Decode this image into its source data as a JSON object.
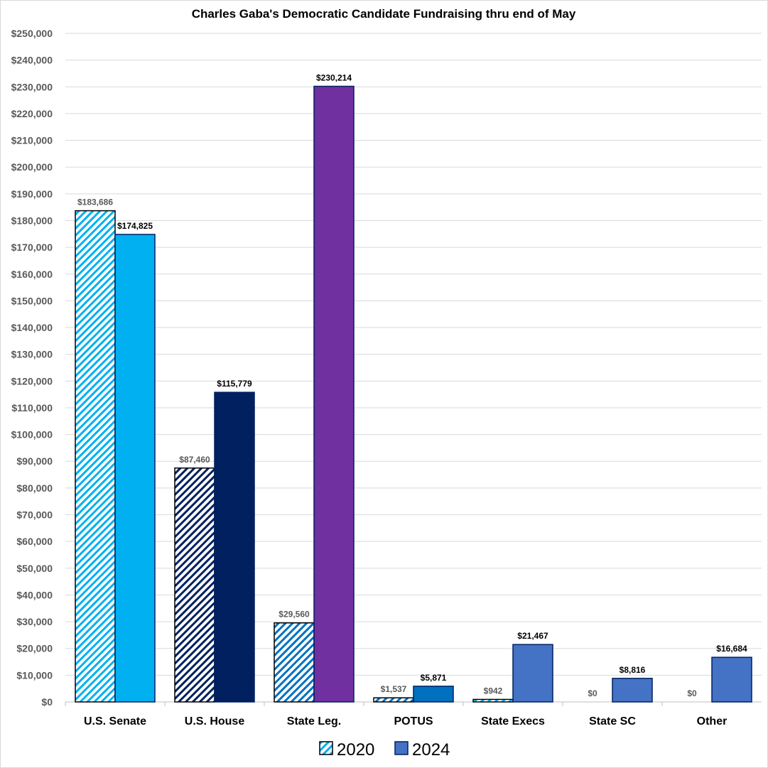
{
  "chart_data": {
    "type": "bar",
    "title": "Charles Gaba's Democratic Candidate Fundraising thru end of May",
    "xlabel": "",
    "ylabel": "",
    "ylim": [
      0,
      250000
    ],
    "ytick_step": 10000,
    "grid": true,
    "legend_placement": "bottom",
    "categories": [
      "U.S. Senate",
      "U.S. House",
      "State Leg.",
      "POTUS",
      "State Execs",
      "State SC",
      "Other"
    ],
    "series": [
      {
        "name": "2020",
        "pattern": "diagonal-hatch",
        "values": [
          183686,
          87460,
          29560,
          1537,
          942,
          0,
          0
        ],
        "labels": [
          "$183,686",
          "$87,460",
          "$29,560",
          "$1,537",
          "$942",
          "$0",
          "$0"
        ],
        "colors": [
          "#00b0f0",
          "#002060",
          "#0070c0",
          "#0070c0",
          "#00b0f0",
          "#4472c4",
          "#4472c4"
        ]
      },
      {
        "name": "2024",
        "pattern": "solid",
        "values": [
          174825,
          115779,
          230214,
          5871,
          21467,
          8816,
          16684
        ],
        "labels": [
          "$174,825",
          "$115,779",
          "$230,214",
          "$5,871",
          "$21,467",
          "$8,816",
          "$16,684"
        ],
        "colors": [
          "#00b0f0",
          "#002060",
          "#7030a0",
          "#0070c0",
          "#4472c4",
          "#4472c4",
          "#4472c4"
        ]
      }
    ],
    "legend_colors": {
      "2020": "#00b0f0",
      "2024": "#4472c4"
    }
  }
}
